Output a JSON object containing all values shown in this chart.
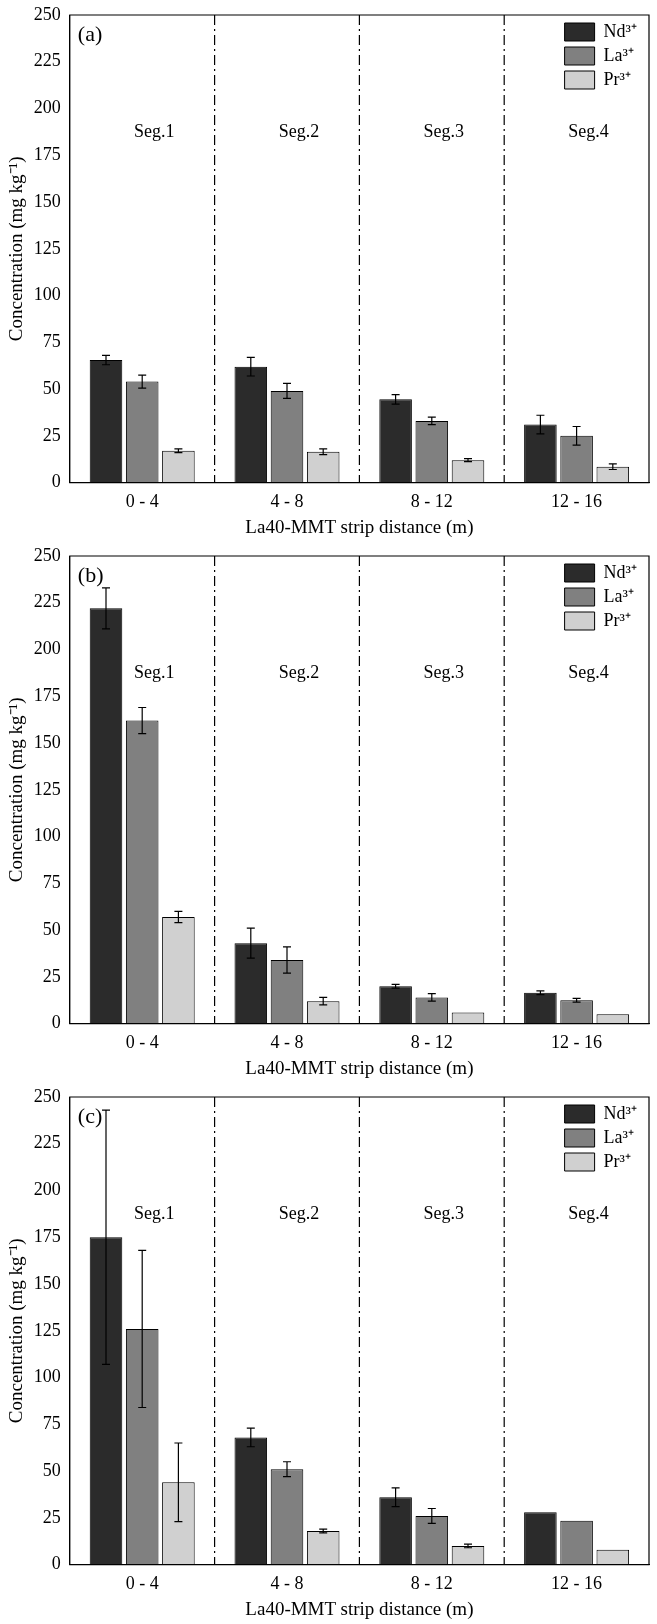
{
  "chart_data": [
    {
      "type": "bar",
      "title": "(a)",
      "xlabel": "La40-MMT strip distance (m)",
      "ylabel": "Concentration (mg kg⁻¹)",
      "categories": [
        "0 - 4",
        "4 - 8",
        "8 - 12",
        "12 - 16"
      ],
      "series": [
        {
          "name": "Nd³⁺",
          "color": "#2b2b2b",
          "values": [
            65.5,
            62,
            44.5,
            31
          ],
          "errors": [
            2.5,
            5,
            2.5,
            5
          ]
        },
        {
          "name": "La³⁺",
          "color": "#808080",
          "values": [
            54,
            49,
            33,
            25
          ],
          "errors": [
            3.5,
            4,
            2,
            5
          ]
        },
        {
          "name": "Pr³⁺",
          "color": "#d0d0d0",
          "values": [
            17,
            16.5,
            12,
            8.5
          ],
          "errors": [
            1,
            1.5,
            0.8,
            1.5
          ]
        }
      ],
      "ylim": [
        0,
        250
      ],
      "yticks": [
        0,
        25,
        50,
        75,
        100,
        125,
        150,
        175,
        200,
        225,
        250
      ],
      "grid": false,
      "legend": "top right",
      "annotations": [
        "Seg.1",
        "Seg.2",
        "Seg.3",
        "Seg.4"
      ]
    },
    {
      "type": "bar",
      "title": "(b)",
      "xlabel": "La40-MMT strip distance (m)",
      "ylabel": "Concentration (mg kg⁻¹)",
      "categories": [
        "0 - 4",
        "4 - 8",
        "8 - 12",
        "12 - 16"
      ],
      "series": [
        {
          "name": "Nd³⁺",
          "color": "#2b2b2b",
          "values": [
            222,
            43,
            20,
            16.5
          ],
          "errors": [
            11,
            8,
            1,
            1
          ]
        },
        {
          "name": "La³⁺",
          "color": "#808080",
          "values": [
            162,
            34,
            14,
            12.5
          ],
          "errors": [
            7,
            7,
            2,
            1
          ]
        },
        {
          "name": "Pr³⁺",
          "color": "#d0d0d0",
          "values": [
            57,
            12,
            6,
            5
          ],
          "errors": [
            3,
            2,
            null,
            null
          ]
        }
      ],
      "ylim": [
        0,
        250
      ],
      "yticks": [
        0,
        25,
        50,
        75,
        100,
        125,
        150,
        175,
        200,
        225,
        250
      ],
      "grid": false,
      "legend": "top right",
      "annotations": [
        "Seg.1",
        "Seg.2",
        "Seg.3",
        "Seg.4"
      ]
    },
    {
      "type": "bar",
      "title": "(c)",
      "xlabel": "La40-MMT strip distance (m)",
      "ylabel": "Concentration (mg kg⁻¹)",
      "categories": [
        "0 - 4",
        "4 - 8",
        "8 - 12",
        "12 - 16"
      ],
      "series": [
        {
          "name": "Nd³⁺",
          "color": "#2b2b2b",
          "values": [
            175,
            68,
            36,
            28
          ],
          "errors": [
            68,
            5,
            5,
            null
          ]
        },
        {
          "name": "La³⁺",
          "color": "#808080",
          "values": [
            126,
            51,
            26,
            23.5
          ],
          "errors": [
            42,
            4,
            4,
            null
          ]
        },
        {
          "name": "Pr³⁺",
          "color": "#d0d0d0",
          "values": [
            44,
            18,
            10,
            8
          ],
          "errors": [
            21,
            1,
            1,
            null
          ]
        }
      ],
      "ylim": [
        0,
        250
      ],
      "yticks": [
        0,
        25,
        50,
        75,
        100,
        125,
        150,
        175,
        200,
        225,
        250
      ],
      "grid": false,
      "legend": "top right",
      "annotations": [
        "Seg.1",
        "Seg.2",
        "Seg.3",
        "Seg.4"
      ]
    }
  ]
}
